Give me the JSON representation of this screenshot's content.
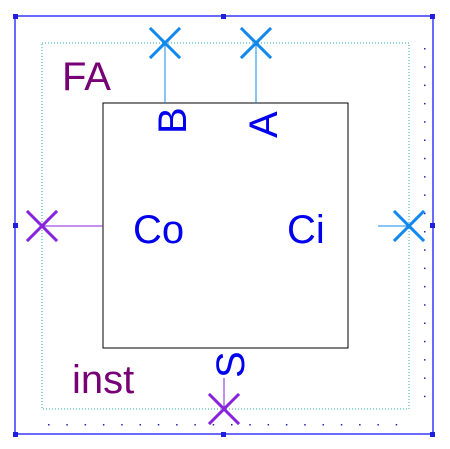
{
  "cell": {
    "name": "FA",
    "instance_name": "inst"
  },
  "pins": {
    "B": "B",
    "A": "A",
    "Co": "Co",
    "Ci": "Ci",
    "S": "S"
  },
  "colors": {
    "selection": "#1a1aff",
    "handle": "#1f1fdd",
    "grid": "#33aaaa",
    "grid_dots": "#2222aa",
    "body_outline": "#000000",
    "label_text": "#770077",
    "pin_text": "#0000ee",
    "pin_input": "#1188ee",
    "pin_output": "#8822dd"
  },
  "icons": {
    "pin_marker": "x-cross-icon"
  }
}
